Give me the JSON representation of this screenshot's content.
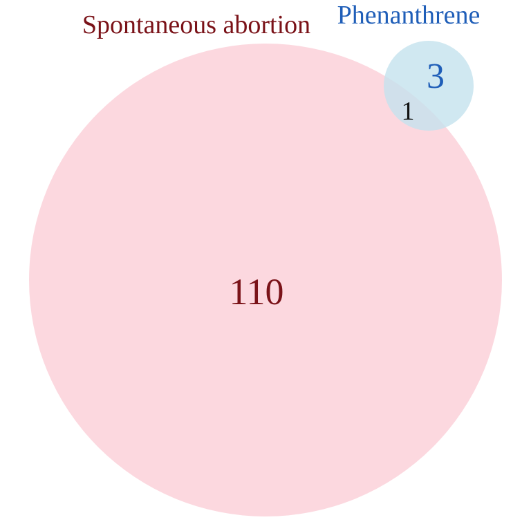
{
  "venn": {
    "sets": [
      {
        "name": "Spontaneous abortion",
        "unique_count": "110",
        "fill_color": "#fcd4dc",
        "label_color": "#7a1218"
      },
      {
        "name": "Phenanthrene",
        "unique_count": "3",
        "fill_color": "#c4e2ee",
        "label_color": "#1f5eb8"
      }
    ],
    "intersection": {
      "count": "1",
      "color": "#111111"
    }
  }
}
